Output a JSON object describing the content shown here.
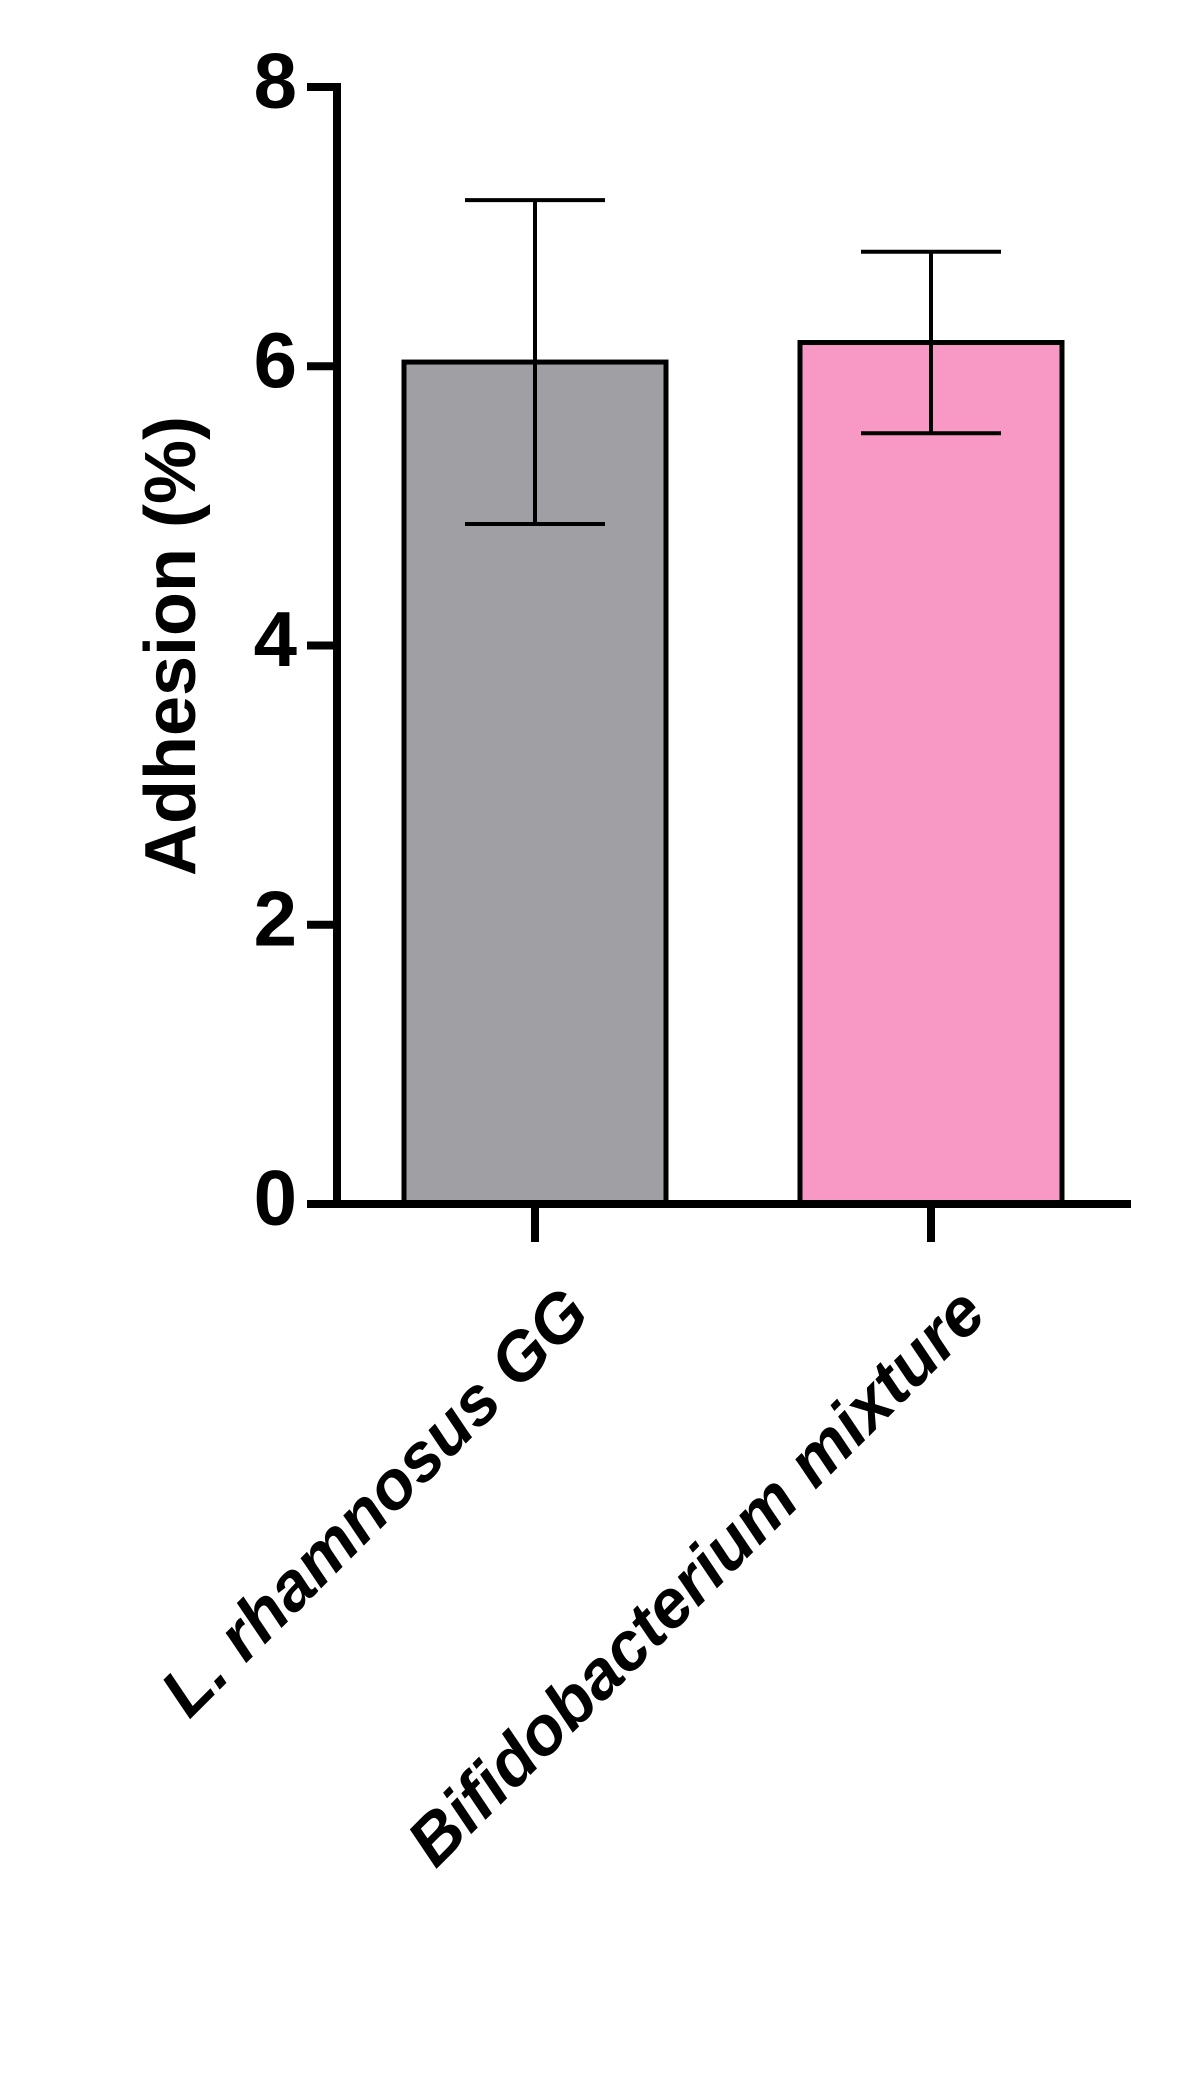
{
  "chart_data": {
    "type": "bar",
    "y_label": "Adhesion (%)",
    "categories": [
      "L. rhamnosus GG",
      "Bifidobacterium mixture"
    ],
    "values": [
      6.03,
      6.17
    ],
    "errors": [
      1.16,
      0.65
    ],
    "colors": [
      "#a09fa4",
      "#f898c4"
    ],
    "ylim": [
      0,
      8
    ],
    "yticks": [
      0,
      2,
      4,
      6,
      8
    ],
    "grid": false
  }
}
